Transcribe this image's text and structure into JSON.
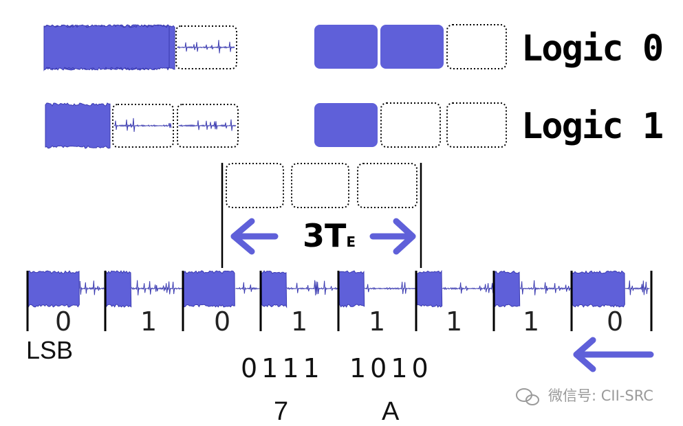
{
  "colors": {
    "pulse": "#5f60d9",
    "noise": "#3a3ab0",
    "frame": "#000000"
  },
  "legend": [
    {
      "label": "Logic 0",
      "blocks": [
        1,
        1,
        0
      ]
    },
    {
      "label": "Logic 1",
      "blocks": [
        1,
        0,
        0
      ]
    }
  ],
  "te": {
    "label": "3T",
    "sub": "E"
  },
  "bits": [
    "0",
    "1",
    "0",
    "1",
    "1",
    "1",
    "1",
    "0"
  ],
  "lsb_label": "LSB",
  "nibbles": [
    "0111",
    "1010"
  ],
  "hex": [
    "7",
    "A"
  ],
  "watermark": "微信号: CII-SRC",
  "icons": [
    "left-arrow-icon",
    "right-arrow-icon",
    "wechat-icon"
  ]
}
